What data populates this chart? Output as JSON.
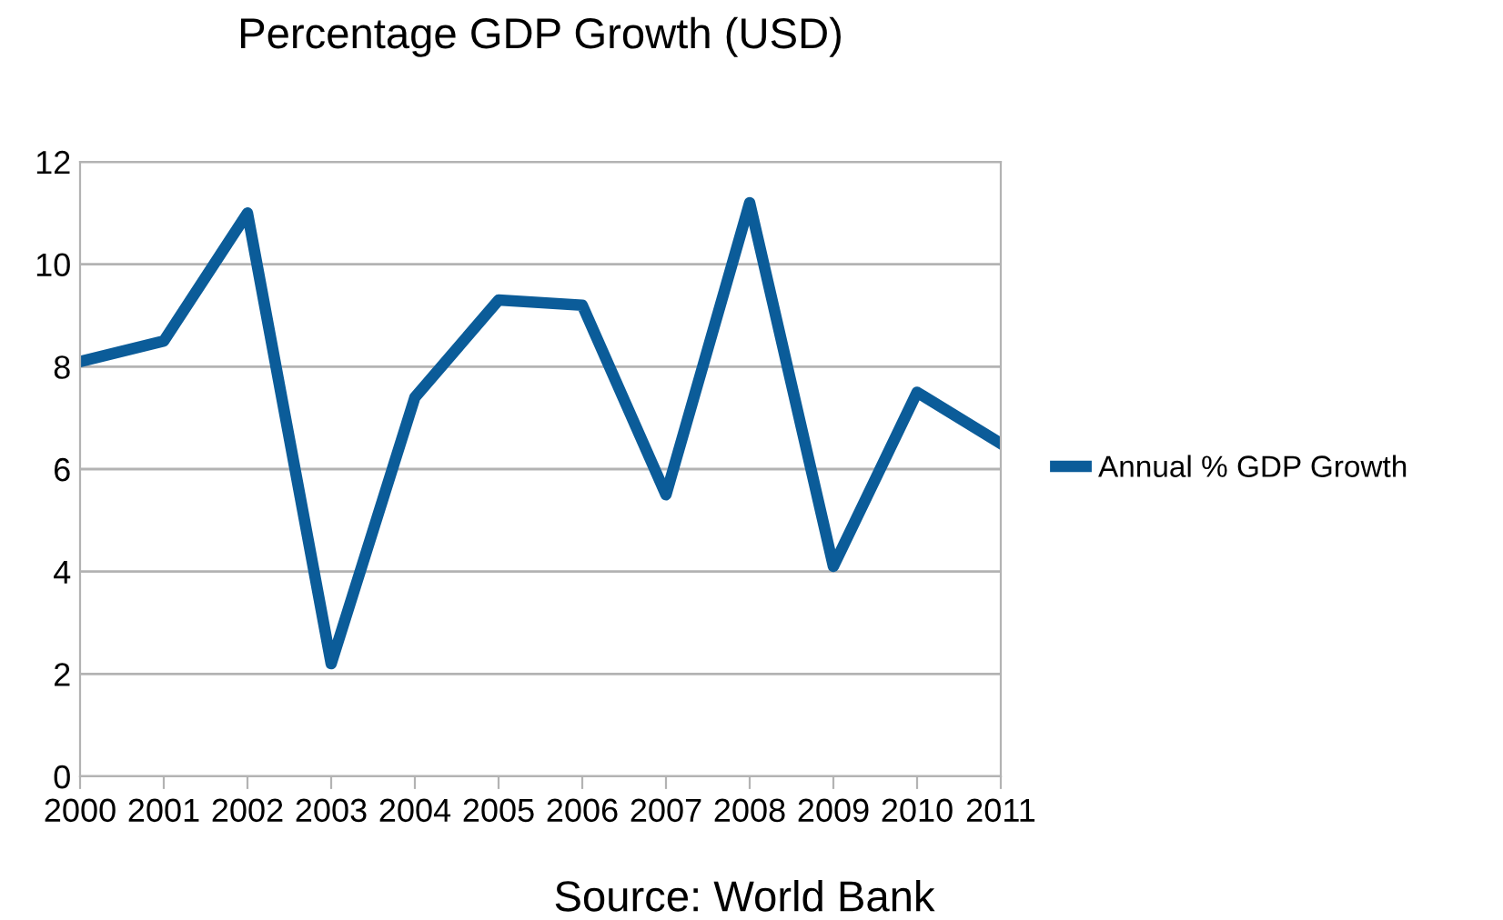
{
  "chart_data": {
    "type": "line",
    "title": "Percentage GDP Growth (USD)",
    "categories": [
      "2000",
      "2001",
      "2002",
      "2003",
      "2004",
      "2005",
      "2006",
      "2007",
      "2008",
      "2009",
      "2010",
      "2011"
    ],
    "series": [
      {
        "name": "Annual % GDP Growth",
        "color": "#0b5c99",
        "values": [
          8.1,
          8.5,
          11.0,
          2.2,
          7.4,
          9.3,
          9.2,
          5.5,
          11.2,
          4.1,
          7.5,
          6.5
        ]
      }
    ],
    "ylim": [
      0,
      12
    ],
    "yticks": [
      0,
      2,
      4,
      6,
      8,
      10,
      12
    ],
    "grid": "y",
    "legend": "right",
    "marker": "none",
    "line_style": "solid",
    "annotations": [
      "Source: World Bank"
    ]
  }
}
